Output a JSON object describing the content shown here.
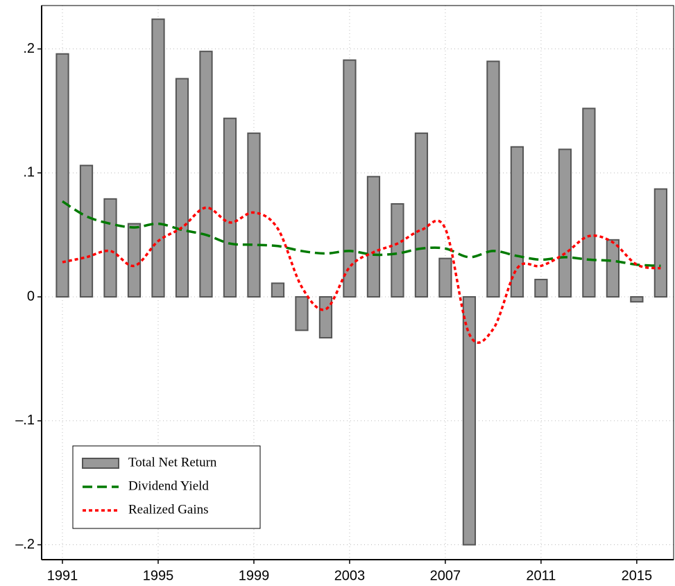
{
  "chart_data": {
    "type": "bar",
    "x": [
      1991,
      1992,
      1993,
      1994,
      1995,
      1996,
      1997,
      1998,
      1999,
      2000,
      2001,
      2002,
      2003,
      2004,
      2005,
      2006,
      2007,
      2008,
      2009,
      2010,
      2011,
      2012,
      2013,
      2014,
      2015,
      2016
    ],
    "series": [
      {
        "name": "Total Net Return",
        "type": "bar",
        "color": "#999999",
        "values": [
          0.196,
          0.106,
          0.079,
          0.059,
          0.224,
          0.176,
          0.198,
          0.144,
          0.132,
          0.011,
          -0.027,
          -0.033,
          0.191,
          0.097,
          0.075,
          0.132,
          0.031,
          -0.2,
          0.19,
          0.121,
          0.014,
          0.119,
          0.152,
          0.046,
          -0.004,
          0.087
        ]
      },
      {
        "name": "Dividend Yield",
        "type": "line",
        "color": "#007a00",
        "dash": "dashed",
        "values": [
          0.077,
          0.065,
          0.059,
          0.056,
          0.059,
          0.054,
          0.05,
          0.043,
          0.042,
          0.041,
          0.037,
          0.035,
          0.037,
          0.034,
          0.035,
          0.039,
          0.039,
          0.032,
          0.037,
          0.033,
          0.03,
          0.032,
          0.03,
          0.029,
          0.026,
          0.025
        ]
      },
      {
        "name": "Realized Gains",
        "type": "line",
        "color": "#ff0000",
        "dash": "dotted",
        "values": [
          0.028,
          0.032,
          0.037,
          0.025,
          0.045,
          0.056,
          0.072,
          0.06,
          0.068,
          0.055,
          0.008,
          -0.01,
          0.024,
          0.036,
          0.043,
          0.054,
          0.055,
          -0.03,
          -0.026,
          0.023,
          0.025,
          0.035,
          0.049,
          0.044,
          0.026,
          0.023
        ]
      }
    ],
    "xlim": [
      1990.13,
      2016.54
    ],
    "xticks": [
      1991,
      1995,
      1999,
      2003,
      2007,
      2011,
      2015
    ],
    "ylim": [
      -0.212,
      0.235
    ],
    "yticks": [
      {
        "value": -0.2,
        "label": "–.2"
      },
      {
        "value": -0.1,
        "label": "–.1"
      },
      0,
      {
        "value": 0.1,
        "label": ".1"
      },
      {
        "value": 0.2,
        "label": ".2"
      }
    ],
    "grid": true,
    "legend": "lower left"
  }
}
